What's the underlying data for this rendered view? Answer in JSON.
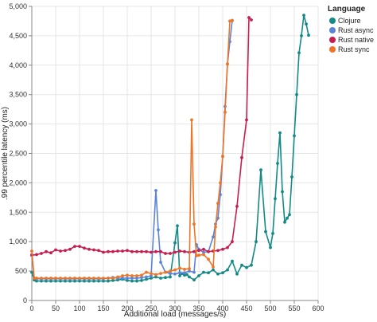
{
  "chart_data": {
    "type": "line",
    "xlabel": "Additional load (messages/s)",
    "ylabel": ".99 percentile latency (ms)",
    "xlim": [
      0,
      600
    ],
    "ylim": [
      0,
      5000
    ],
    "xticks": [
      0,
      50,
      100,
      150,
      200,
      250,
      300,
      350,
      400,
      450,
      500,
      550,
      600
    ],
    "yticks": [
      0,
      500,
      1000,
      1500,
      2000,
      2500,
      3000,
      3500,
      4000,
      4500,
      5000
    ],
    "xtick_labels": [
      "0",
      "50",
      "100",
      "150",
      "200",
      "250",
      "300",
      "350",
      "400",
      "450",
      "500",
      "550",
      "600"
    ],
    "ytick_labels": [
      "0",
      "500",
      "1,000",
      "1,500",
      "2,000",
      "2,500",
      "3,000",
      "3,500",
      "4,000",
      "4,500",
      "5,000"
    ],
    "grid": true,
    "legend": {
      "title": "Language",
      "position": "top-right"
    },
    "series": [
      {
        "name": "Clojure",
        "color": "#138a87",
        "x": [
          0,
          5,
          10,
          20,
          30,
          40,
          50,
          60,
          70,
          80,
          90,
          100,
          110,
          120,
          130,
          140,
          150,
          160,
          170,
          180,
          190,
          200,
          210,
          220,
          230,
          240,
          250,
          260,
          270,
          280,
          290,
          300,
          305,
          310,
          315,
          320,
          325,
          330,
          340,
          350,
          360,
          370,
          380,
          390,
          400,
          410,
          420,
          430,
          440,
          450,
          460,
          470,
          480,
          490,
          500,
          505,
          510,
          515,
          520,
          525,
          530,
          535,
          540,
          545,
          550,
          555,
          560,
          565,
          570,
          575,
          580
        ],
        "y": [
          480,
          350,
          330,
          330,
          330,
          330,
          330,
          330,
          330,
          330,
          330,
          330,
          330,
          330,
          330,
          330,
          330,
          330,
          340,
          350,
          360,
          340,
          330,
          330,
          340,
          360,
          380,
          400,
          380,
          390,
          400,
          980,
          1270,
          420,
          460,
          430,
          440,
          400,
          350,
          420,
          480,
          470,
          520,
          450,
          470,
          520,
          670,
          450,
          600,
          560,
          600,
          1000,
          2220,
          1170,
          900,
          1140,
          1730,
          2330,
          2850,
          1850,
          1330,
          1400,
          1460,
          2100,
          2800,
          3500,
          4210,
          4500,
          4850,
          4700,
          4510
        ]
      },
      {
        "name": "Rust async",
        "color": "#5b84d9",
        "x": [
          0,
          5,
          10,
          20,
          30,
          40,
          50,
          60,
          70,
          80,
          90,
          100,
          110,
          120,
          130,
          140,
          150,
          160,
          170,
          180,
          190,
          200,
          210,
          220,
          230,
          240,
          250,
          260,
          265,
          270,
          280,
          290,
          300,
          310,
          320,
          330,
          340,
          345,
          350,
          360,
          370,
          380,
          385,
          390,
          395,
          400,
          405,
          410,
          415,
          420
        ],
        "y": [
          780,
          380,
          370,
          370,
          370,
          370,
          370,
          370,
          370,
          370,
          370,
          370,
          370,
          370,
          370,
          370,
          370,
          380,
          390,
          380,
          380,
          380,
          380,
          380,
          390,
          400,
          420,
          1870,
          1200,
          650,
          480,
          460,
          450,
          470,
          470,
          500,
          480,
          950,
          870,
          820,
          830,
          1080,
          1300,
          1400,
          1800,
          2450,
          3300,
          4020,
          4400,
          4760
        ]
      },
      {
        "name": "Rust native",
        "color": "#c81e4f",
        "x": [
          0,
          10,
          20,
          30,
          40,
          50,
          60,
          70,
          80,
          90,
          100,
          110,
          120,
          130,
          140,
          150,
          160,
          170,
          180,
          190,
          200,
          210,
          220,
          230,
          240,
          250,
          260,
          270,
          280,
          290,
          300,
          310,
          320,
          330,
          340,
          350,
          360,
          370,
          380,
          390,
          400,
          410,
          420,
          430,
          440,
          450,
          455,
          460
        ],
        "y": [
          770,
          780,
          800,
          830,
          810,
          860,
          840,
          850,
          870,
          920,
          920,
          890,
          870,
          860,
          850,
          820,
          830,
          830,
          840,
          840,
          850,
          830,
          830,
          830,
          830,
          820,
          830,
          830,
          800,
          800,
          820,
          840,
          830,
          820,
          830,
          850,
          870,
          830,
          840,
          850,
          870,
          900,
          1000,
          1600,
          2430,
          3070,
          4810,
          4770
        ]
      },
      {
        "name": "Rust sync",
        "color": "#f07427",
        "x": [
          0,
          5,
          10,
          20,
          30,
          40,
          50,
          60,
          70,
          80,
          90,
          100,
          110,
          120,
          130,
          140,
          150,
          160,
          170,
          180,
          190,
          200,
          210,
          220,
          230,
          240,
          250,
          260,
          270,
          280,
          290,
          300,
          310,
          320,
          330,
          335,
          340,
          345,
          350,
          360,
          370,
          380,
          385,
          390,
          395,
          400,
          405,
          410,
          415,
          420
        ],
        "y": [
          840,
          380,
          380,
          380,
          380,
          380,
          380,
          380,
          380,
          380,
          380,
          380,
          380,
          380,
          380,
          380,
          380,
          380,
          380,
          400,
          420,
          430,
          420,
          420,
          430,
          480,
          460,
          440,
          460,
          480,
          500,
          520,
          550,
          530,
          540,
          3070,
          1300,
          760,
          770,
          780,
          700,
          570,
          1250,
          1650,
          2000,
          2450,
          3200,
          4020,
          4750,
          4760
        ]
      }
    ]
  }
}
